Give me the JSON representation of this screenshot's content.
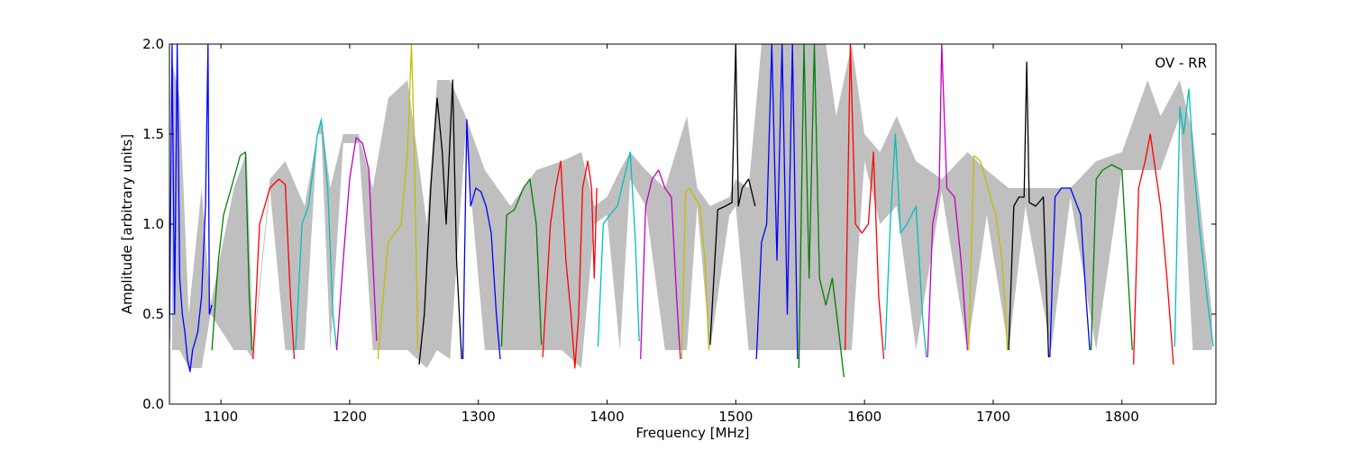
{
  "chart_data": {
    "type": "line",
    "title": "",
    "xlabel": "Frequency [MHz]",
    "ylabel": "Amplitude [arbitrary units]",
    "annotation": "OV - RR",
    "xlim": [
      1060,
      1873
    ],
    "ylim": [
      0.0,
      2.0
    ],
    "xticks": [
      1100,
      1200,
      1300,
      1400,
      1500,
      1600,
      1700,
      1800
    ],
    "yticks": [
      0.0,
      0.5,
      1.0,
      1.5,
      2.0
    ],
    "xtick_labels": [
      "1100",
      "1200",
      "1300",
      "1400",
      "1500",
      "1600",
      "1700",
      "1800"
    ],
    "ytick_labels": [
      "0.0",
      "0.5",
      "1.0",
      "1.5",
      "2.0"
    ],
    "grid": false,
    "legend": "none",
    "colors": {
      "background_band": "#bfbfbf",
      "cycle": [
        "#0000ff",
        "#008000",
        "#ff0000",
        "#00bfbf",
        "#bf00bf",
        "#bfbf00",
        "#000000"
      ]
    },
    "background_band": {
      "name": "",
      "x": [
        1062,
        1068,
        1075,
        1085,
        1092,
        1110,
        1120,
        1125,
        1138,
        1150,
        1165,
        1175,
        1178,
        1185,
        1195,
        1207,
        1218,
        1230,
        1245,
        1260,
        1268,
        1278,
        1290,
        1305,
        1325,
        1345,
        1365,
        1380,
        1390,
        1400,
        1410,
        1418,
        1430,
        1445,
        1462,
        1470,
        1480,
        1495,
        1500,
        1510,
        1520,
        1530,
        1540,
        1550,
        1560,
        1570,
        1578,
        1590,
        1600,
        1612,
        1625,
        1640,
        1660,
        1680,
        1695,
        1712,
        1725,
        1745,
        1760,
        1780,
        1800,
        1820,
        1830,
        1845,
        1855,
        1870
      ],
      "upper": [
        1.9,
        1.7,
        0.5,
        1.2,
        0.55,
        1.2,
        1.4,
        0.3,
        1.25,
        1.35,
        1.1,
        1.5,
        1.6,
        1.2,
        1.5,
        1.5,
        1.2,
        1.7,
        1.8,
        1.0,
        1.8,
        1.8,
        1.6,
        1.3,
        1.1,
        1.3,
        1.35,
        1.4,
        1.1,
        1.15,
        1.3,
        1.4,
        1.3,
        1.2,
        1.6,
        1.2,
        1.1,
        1.15,
        1.25,
        1.2,
        2.0,
        2.0,
        2.0,
        2.0,
        2.0,
        2.0,
        1.6,
        2.0,
        1.5,
        1.4,
        1.6,
        1.35,
        1.25,
        1.4,
        1.3,
        1.2,
        1.2,
        1.2,
        1.2,
        1.35,
        1.4,
        1.8,
        1.6,
        1.8,
        1.5,
        0.5
      ],
      "lower": [
        0.3,
        0.3,
        0.2,
        0.2,
        0.5,
        0.3,
        0.3,
        0.25,
        1.2,
        0.3,
        0.3,
        1.5,
        1.5,
        0.3,
        1.45,
        1.45,
        0.3,
        0.3,
        0.3,
        0.2,
        0.3,
        0.25,
        1.5,
        0.3,
        0.3,
        0.3,
        0.3,
        0.2,
        1.0,
        1.05,
        0.3,
        1.25,
        1.1,
        0.3,
        0.3,
        1.1,
        0.3,
        1.05,
        1.1,
        0.3,
        0.3,
        0.3,
        0.3,
        0.3,
        0.3,
        0.3,
        0.3,
        0.3,
        1.35,
        1.0,
        1.1,
        0.3,
        1.18,
        0.3,
        1.05,
        0.3,
        1.1,
        0.3,
        1.15,
        0.3,
        1.3,
        1.3,
        1.3,
        1.6,
        0.3,
        0.3
      ]
    },
    "series": [
      {
        "color": "#0000ff",
        "x": [
          1060,
          1062,
          1064,
          1066,
          1068,
          1070,
          1072,
          1074,
          1076,
          1078,
          1080,
          1082,
          1085,
          1088,
          1090,
          1091,
          1093
        ],
        "y": [
          0.35,
          2.0,
          0.5,
          2.0,
          0.7,
          0.5,
          0.4,
          0.25,
          0.18,
          0.3,
          0.35,
          0.4,
          0.6,
          1.1,
          2.0,
          0.5,
          0.55
        ]
      },
      {
        "color": "#008000",
        "x": [
          1093,
          1098,
          1102,
          1108,
          1115,
          1119,
          1122,
          1124
        ],
        "y": [
          0.3,
          0.8,
          1.05,
          1.2,
          1.38,
          1.4,
          0.6,
          0.3
        ]
      },
      {
        "color": "#ff0000",
        "x": [
          1125,
          1130,
          1138,
          1145,
          1150,
          1154,
          1157
        ],
        "y": [
          0.25,
          1.0,
          1.2,
          1.25,
          1.22,
          0.6,
          0.25
        ]
      },
      {
        "color": "#00bfbf",
        "x": [
          1158,
          1163,
          1168,
          1175,
          1178,
          1183,
          1187,
          1190
        ],
        "y": [
          0.3,
          1.0,
          1.1,
          1.5,
          1.58,
          1.2,
          0.5,
          0.3
        ]
      },
      {
        "color": "#bf00bf",
        "x": [
          1190,
          1195,
          1200,
          1205,
          1210,
          1215,
          1218,
          1221
        ],
        "y": [
          0.3,
          0.8,
          1.25,
          1.48,
          1.45,
          1.3,
          0.8,
          0.35
        ]
      },
      {
        "color": "#bfbf00",
        "x": [
          1222,
          1226,
          1230,
          1235,
          1240,
          1245,
          1248,
          1250,
          1253
        ],
        "y": [
          0.25,
          0.6,
          0.9,
          0.95,
          1.0,
          1.4,
          2.0,
          1.5,
          0.3
        ]
      },
      {
        "color": "#000000",
        "x": [
          1254,
          1258,
          1263,
          1268,
          1272,
          1275,
          1280,
          1283,
          1287
        ],
        "y": [
          0.22,
          0.5,
          1.2,
          1.7,
          1.4,
          1.0,
          1.8,
          0.8,
          0.25
        ]
      },
      {
        "color": "#0000ff",
        "x": [
          1288,
          1291,
          1294,
          1298,
          1302,
          1306,
          1310,
          1314,
          1317
        ],
        "y": [
          0.25,
          1.58,
          1.1,
          1.2,
          1.18,
          1.1,
          0.95,
          0.5,
          0.25
        ]
      },
      {
        "color": "#008000",
        "x": [
          1318,
          1322,
          1328,
          1335,
          1340,
          1345,
          1349
        ],
        "y": [
          0.32,
          1.05,
          1.08,
          1.2,
          1.25,
          1.0,
          0.33
        ]
      },
      {
        "color": "#ff0000",
        "x": [
          1350,
          1356,
          1360,
          1364,
          1368,
          1372,
          1375,
          1378,
          1381,
          1385,
          1388,
          1390,
          1392
        ],
        "y": [
          0.26,
          1.0,
          1.2,
          1.35,
          0.8,
          0.5,
          0.2,
          0.5,
          1.2,
          1.35,
          1.2,
          0.7,
          1.2
        ]
      },
      {
        "color": "#00bfbf",
        "x": [
          1393,
          1397,
          1402,
          1408,
          1413,
          1418,
          1422,
          1425
        ],
        "y": [
          0.32,
          1.0,
          1.05,
          1.1,
          1.25,
          1.4,
          0.9,
          0.35
        ]
      },
      {
        "color": "#bf00bf",
        "x": [
          1426,
          1430,
          1435,
          1440,
          1445,
          1450,
          1454,
          1457
        ],
        "y": [
          0.25,
          1.1,
          1.25,
          1.3,
          1.2,
          1.15,
          0.6,
          0.25
        ]
      },
      {
        "color": "#bfbf00",
        "x": [
          1458,
          1461,
          1464,
          1468,
          1472,
          1476,
          1479
        ],
        "y": [
          0.25,
          1.18,
          1.2,
          1.15,
          1.1,
          0.8,
          0.3
        ]
      },
      {
        "color": "#000000",
        "x": [
          1480,
          1486,
          1492,
          1497,
          1500,
          1502,
          1505,
          1510,
          1515
        ],
        "y": [
          0.33,
          1.08,
          1.1,
          1.12,
          2.0,
          1.1,
          1.2,
          1.25,
          1.1
        ]
      },
      {
        "color": "#0000ff",
        "x": [
          1516,
          1520,
          1524,
          1528,
          1532,
          1536,
          1540,
          1544,
          1548
        ],
        "y": [
          0.25,
          0.9,
          1.0,
          2.0,
          0.8,
          2.0,
          0.5,
          2.0,
          0.25
        ]
      },
      {
        "color": "#008000",
        "x": [
          1549,
          1553,
          1557,
          1561,
          1565,
          1570,
          1575,
          1580,
          1584
        ],
        "y": [
          0.2,
          2.0,
          0.7,
          2.0,
          0.7,
          0.55,
          0.7,
          0.4,
          0.15
        ]
      },
      {
        "color": "#ff0000",
        "x": [
          1585,
          1589,
          1593,
          1598,
          1603,
          1607,
          1611,
          1615
        ],
        "y": [
          0.3,
          2.0,
          1.0,
          0.95,
          1.0,
          1.4,
          0.6,
          0.25
        ]
      },
      {
        "color": "#00bfbf",
        "x": [
          1616,
          1620,
          1624,
          1628,
          1633,
          1640,
          1645,
          1648
        ],
        "y": [
          0.3,
          1.0,
          1.5,
          0.95,
          1.0,
          1.1,
          0.5,
          0.26
        ]
      },
      {
        "color": "#bf00bf",
        "x": [
          1649,
          1653,
          1658,
          1660,
          1664,
          1670,
          1675,
          1680
        ],
        "y": [
          0.26,
          1.0,
          1.2,
          2.0,
          1.2,
          1.15,
          0.8,
          0.3
        ]
      },
      {
        "color": "#bfbf00",
        "x": [
          1681,
          1685,
          1690,
          1696,
          1702,
          1707,
          1711
        ],
        "y": [
          0.3,
          1.38,
          1.35,
          1.2,
          1.05,
          0.8,
          0.3
        ]
      },
      {
        "color": "#000000",
        "x": [
          1712,
          1716,
          1720,
          1724,
          1726,
          1728,
          1733,
          1739,
          1743
        ],
        "y": [
          0.3,
          1.1,
          1.15,
          1.15,
          1.9,
          1.12,
          1.1,
          1.15,
          0.26
        ]
      },
      {
        "color": "#0000ff",
        "x": [
          1744,
          1748,
          1753,
          1760,
          1768,
          1772,
          1775
        ],
        "y": [
          0.26,
          1.15,
          1.2,
          1.2,
          1.05,
          0.6,
          0.3
        ]
      },
      {
        "color": "#008000",
        "x": [
          1776,
          1780,
          1785,
          1792,
          1800,
          1804,
          1808
        ],
        "y": [
          0.3,
          1.25,
          1.3,
          1.33,
          1.3,
          0.8,
          0.3
        ]
      },
      {
        "color": "#ff0000",
        "x": [
          1809,
          1813,
          1818,
          1822,
          1826,
          1830,
          1835,
          1840
        ],
        "y": [
          0.22,
          1.2,
          1.35,
          1.5,
          1.3,
          1.1,
          0.7,
          0.22
        ]
      },
      {
        "color": "#00bfbf",
        "x": [
          1841,
          1845,
          1848,
          1852,
          1856,
          1860,
          1866,
          1871
        ],
        "y": [
          0.32,
          1.65,
          1.5,
          1.75,
          1.3,
          1.0,
          0.6,
          0.32
        ]
      }
    ]
  }
}
